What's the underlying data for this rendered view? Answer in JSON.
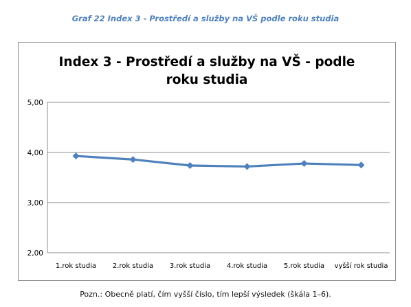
{
  "caption": "Graf 22 Index 3 - Prostředí a služby na VŠ podle roku studia",
  "footnote": "Pozn.: Obecně platí, čím vyšší číslo, tím lepší výsledek (škála 1–6).",
  "colors": {
    "caption": "#4f81bd",
    "series": "#4f81bd",
    "gridline": "#8c8c8c"
  },
  "chart_data": {
    "type": "line",
    "title_lines": [
      "Index  3 - Prostředí a služby na VŠ - podle",
      "roku studia"
    ],
    "xlabel": "",
    "ylabel": "",
    "categories": [
      "1.rok studia",
      "2.rok studia",
      "3.rok studia",
      "4.rok studia",
      "5.rok studia",
      "vyšší rok studia"
    ],
    "series": [
      {
        "values": [
          3.93,
          3.86,
          3.74,
          3.72,
          3.78,
          3.75
        ],
        "marker": "diamond"
      }
    ],
    "ylim": [
      2.0,
      5.0
    ],
    "yticks": [
      "2,00",
      "3,00",
      "4,00",
      "5,00"
    ],
    "ytick_values": [
      2.0,
      3.0,
      4.0,
      5.0
    ],
    "grid": true,
    "legend": "none"
  }
}
